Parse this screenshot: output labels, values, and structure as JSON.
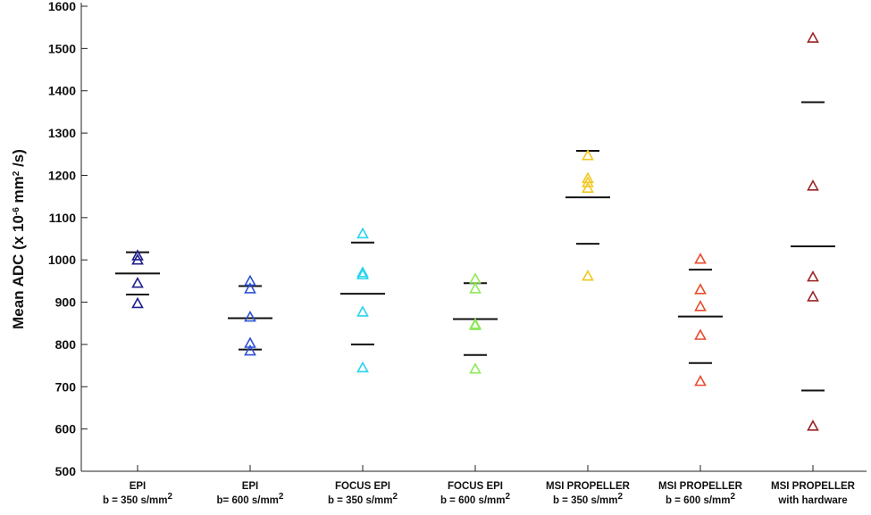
{
  "chart_data": {
    "type": "scatter",
    "ylabel": {
      "prefix": "Mean ADC  (x 10",
      "exp": "-6",
      "mid": " mm",
      "exp2": "2",
      "suffix": " /s)"
    },
    "ylim": [
      500,
      1600
    ],
    "yticks": [
      500,
      600,
      700,
      800,
      900,
      1000,
      1100,
      1200,
      1300,
      1400,
      1500,
      1600
    ],
    "grid": false,
    "marker": "triangle-open",
    "groups": [
      {
        "line1": "EPI",
        "line2": {
          "text": "b = 350 s/mm",
          "sup": "2"
        },
        "color": "#1f1f8f",
        "points": [
          1010,
          1000,
          945,
          897
        ],
        "mean": 968,
        "sd_upper": 1018,
        "sd_lower": 918
      },
      {
        "line1": "EPI",
        "line2": {
          "text": "b= 600 s/mm",
          "sup": "2"
        },
        "color": "#2b4fd6",
        "points": [
          950,
          932,
          865,
          803,
          785
        ],
        "mean": 862,
        "sd_upper": 938,
        "sd_lower": 788
      },
      {
        "line1": "FOCUS EPI",
        "line2": {
          "text": "b = 350 s/mm",
          "sup": "2"
        },
        "color": "#2ad4ee",
        "points": [
          1062,
          970,
          965,
          877,
          745
        ],
        "mean": 920,
        "sd_upper": 1041,
        "sd_lower": 800
      },
      {
        "line1": "FOCUS EPI",
        "line2": {
          "text": "b = 600 s/mm",
          "sup": "2"
        },
        "color": "#8ee85a",
        "points": [
          955,
          932,
          848,
          845,
          742
        ],
        "mean": 860,
        "sd_upper": 945,
        "sd_lower": 775
      },
      {
        "line1": "MSI PROPELLER",
        "line2": {
          "text": "b = 350 s/mm",
          "sup": "2"
        },
        "color": "#f2c71f",
        "points": [
          1247,
          1193,
          1183,
          1170,
          962
        ],
        "mean": 1148,
        "sd_upper": 1258,
        "sd_lower": 1038
      },
      {
        "line1": "MSI PROPELLER",
        "line2": {
          "text": "b = 600 s/mm",
          "sup": "2"
        },
        "color": "#e84a2c",
        "points": [
          1002,
          930,
          890,
          822,
          713
        ],
        "mean": 866,
        "sd_upper": 977,
        "sd_lower": 756
      },
      {
        "line1": "MSI PROPELLER",
        "line2": {
          "text": "with hardware",
          "sup": ""
        },
        "color": "#9b2323",
        "points": [
          1525,
          1175,
          960,
          913,
          607
        ],
        "mean": 1032,
        "sd_upper": 1373,
        "sd_lower": 691
      }
    ]
  }
}
